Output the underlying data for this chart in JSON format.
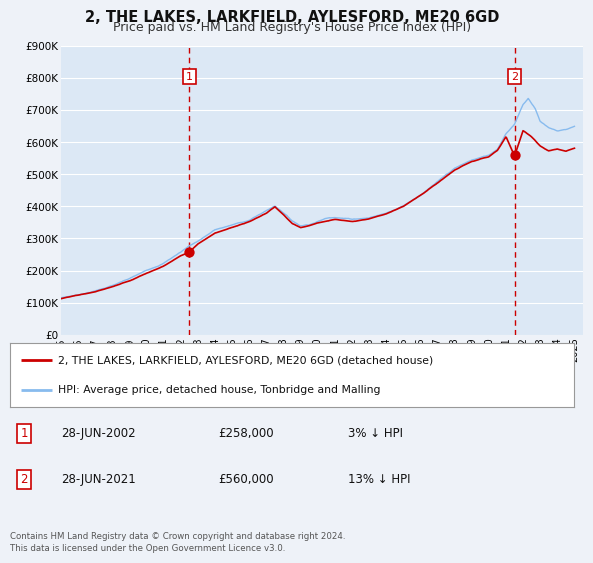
{
  "title": "2, THE LAKES, LARKFIELD, AYLESFORD, ME20 6GD",
  "subtitle": "Price paid vs. HM Land Registry's House Price Index (HPI)",
  "ylim": [
    0,
    900000
  ],
  "xlim": [
    1995.0,
    2025.5
  ],
  "yticks": [
    0,
    100000,
    200000,
    300000,
    400000,
    500000,
    600000,
    700000,
    800000,
    900000
  ],
  "ytick_labels": [
    "£0",
    "£100K",
    "£200K",
    "£300K",
    "£400K",
    "£500K",
    "£600K",
    "£700K",
    "£800K",
    "£900K"
  ],
  "xticks": [
    1995,
    1996,
    1997,
    1998,
    1999,
    2000,
    2001,
    2002,
    2003,
    2004,
    2005,
    2006,
    2007,
    2008,
    2009,
    2010,
    2011,
    2012,
    2013,
    2014,
    2015,
    2016,
    2017,
    2018,
    2019,
    2020,
    2021,
    2022,
    2023,
    2024,
    2025
  ],
  "background_color": "#eef2f8",
  "plot_bg_color": "#dce8f5",
  "grid_color": "#ffffff",
  "sale1_x": 2002.5,
  "sale1_y": 258000,
  "sale2_x": 2021.5,
  "sale2_y": 560000,
  "sale_color": "#cc0000",
  "hpi_color": "#88bbee",
  "legend_label_sale": "2, THE LAKES, LARKFIELD, AYLESFORD, ME20 6GD (detached house)",
  "legend_label_hpi": "HPI: Average price, detached house, Tonbridge and Malling",
  "annotation1_label": "1",
  "annotation1_date": "28-JUN-2002",
  "annotation1_price": "£258,000",
  "annotation1_hpi": "3% ↓ HPI",
  "annotation2_label": "2",
  "annotation2_date": "28-JUN-2021",
  "annotation2_price": "£560,000",
  "annotation2_hpi": "13% ↓ HPI",
  "footer": "Contains HM Land Registry data © Crown copyright and database right 2024.\nThis data is licensed under the Open Government Licence v3.0.",
  "title_fontsize": 10.5,
  "subtitle_fontsize": 9
}
